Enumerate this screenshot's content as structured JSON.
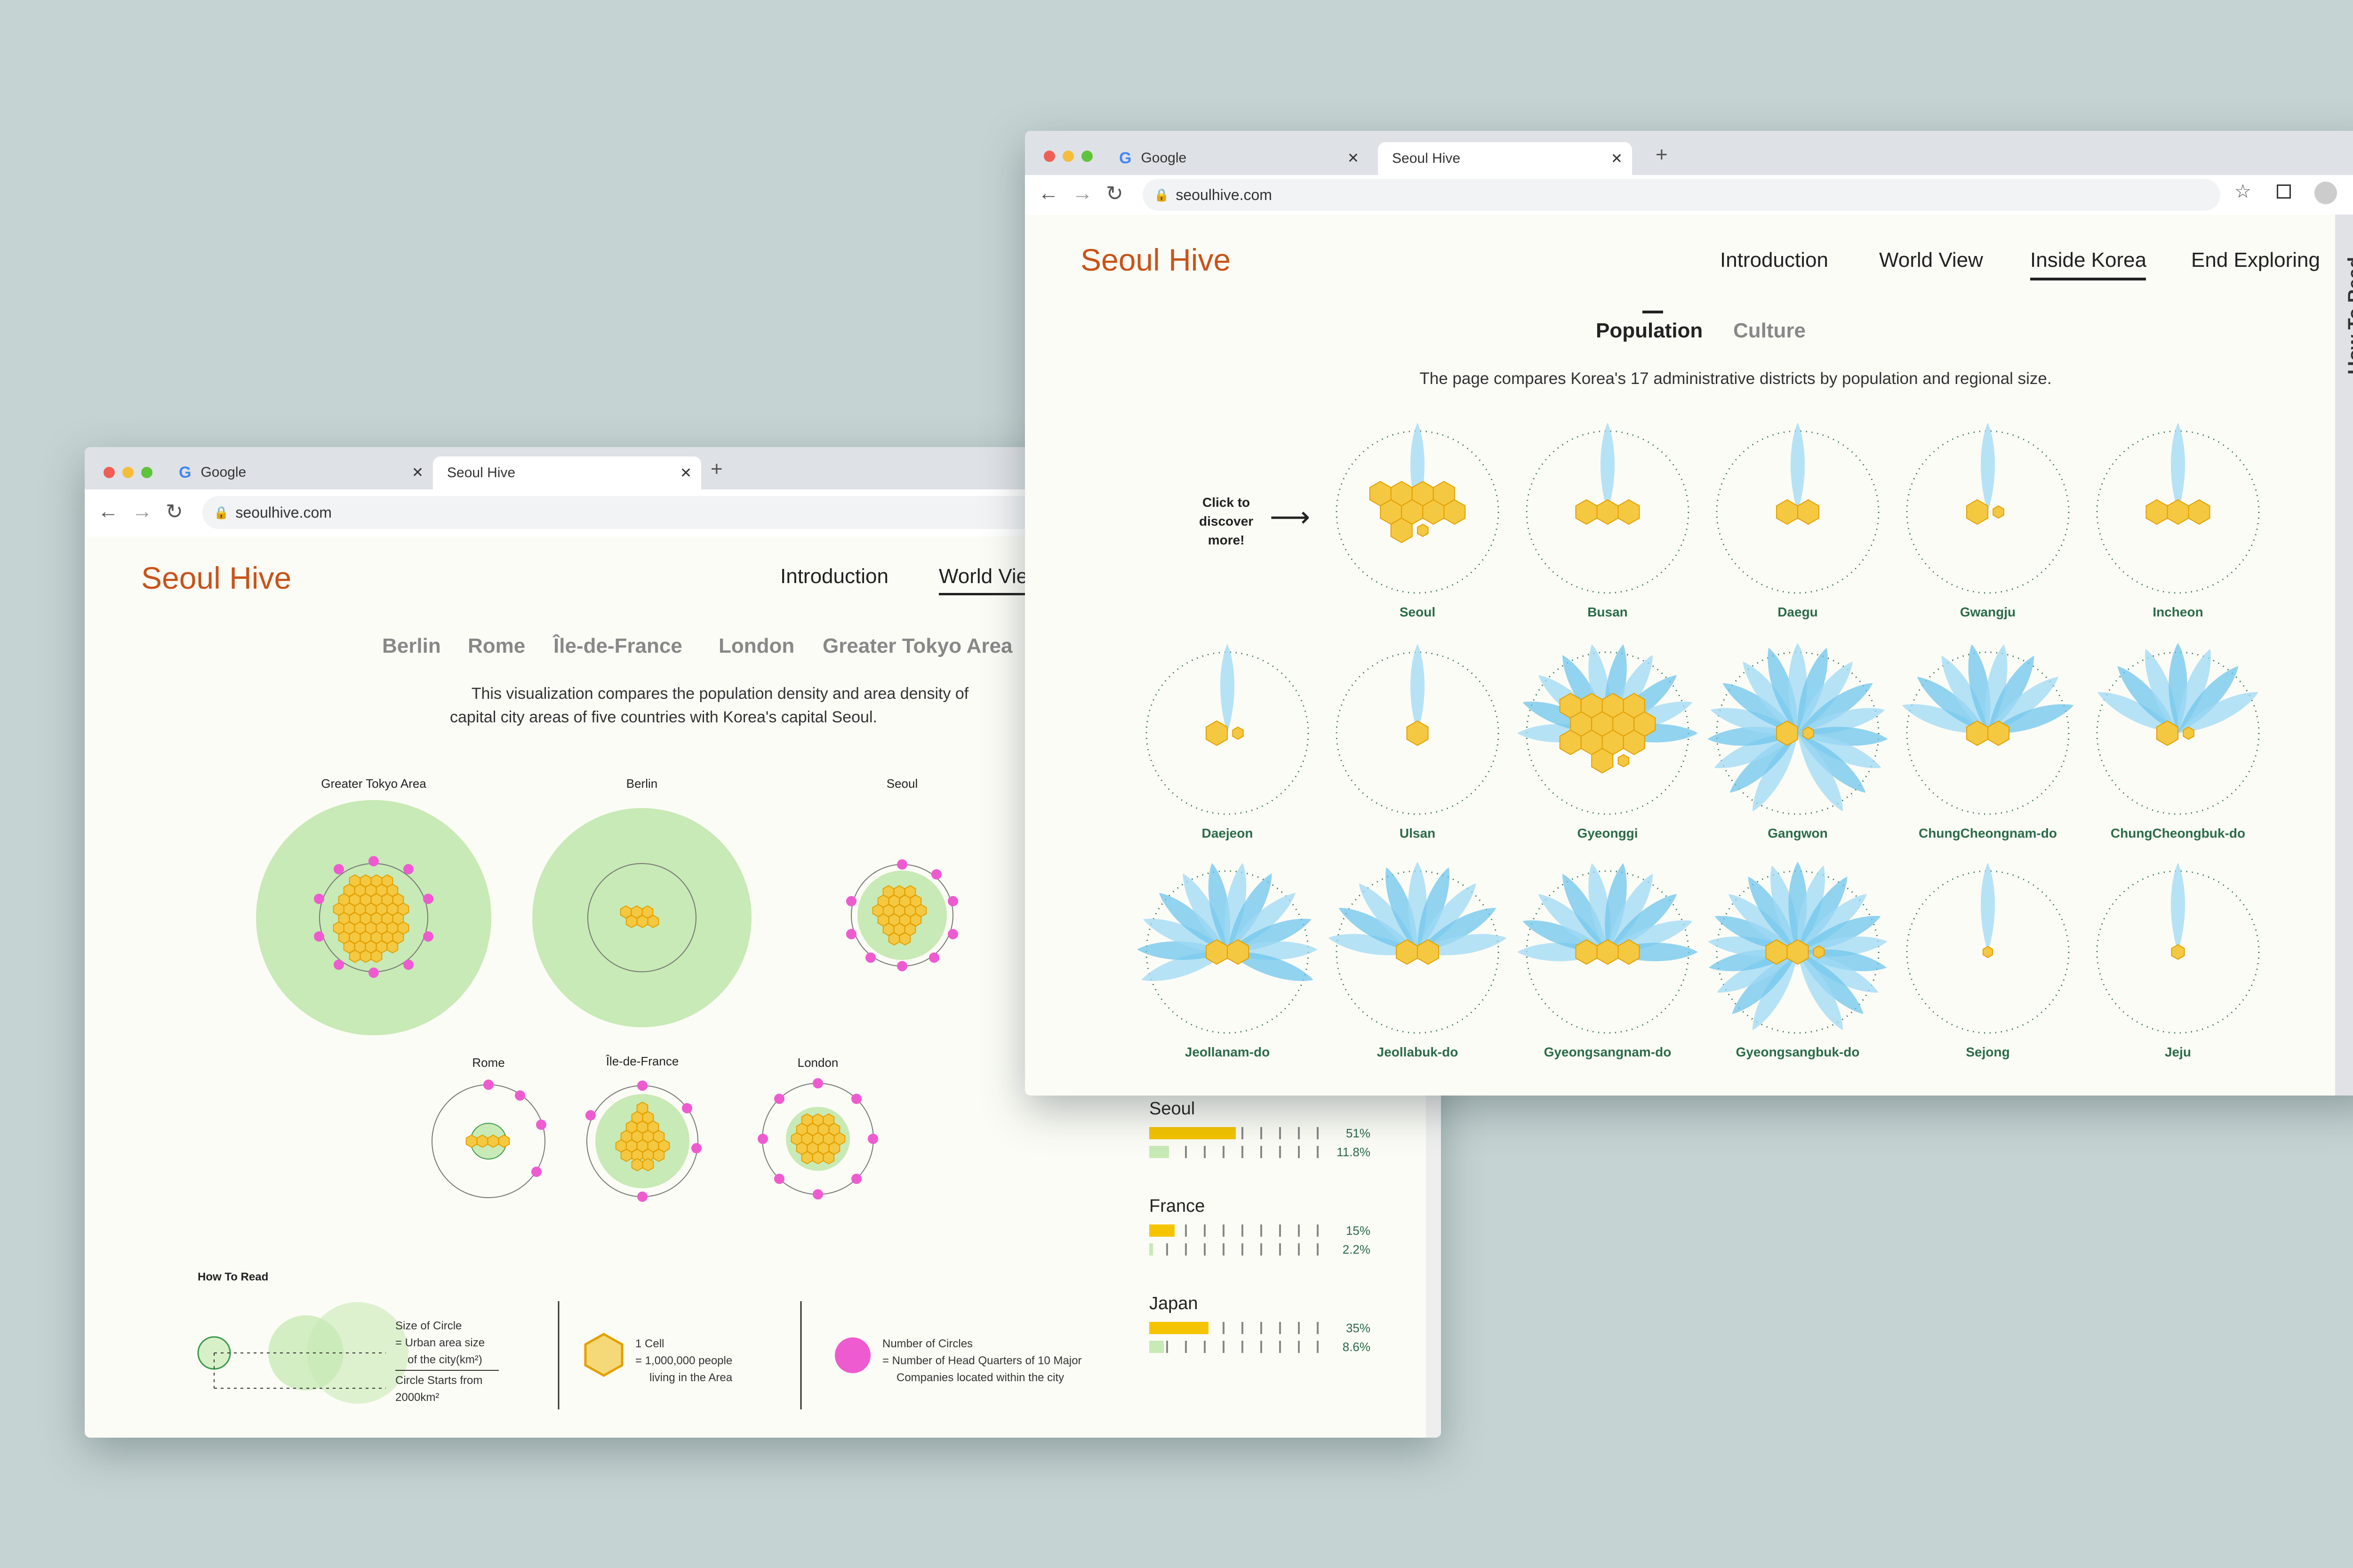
{
  "back_window": {
    "tabs": [
      {
        "title": "Google"
      },
      {
        "title": "Seoul Hive"
      }
    ],
    "url": "seoulhive.com",
    "logo": "Seoul Hive",
    "nav": {
      "introduction": "Introduction",
      "world_view": "World Vie"
    },
    "city_tabs": [
      "Berlin",
      "Rome",
      "Île-de-France",
      "London",
      "Greater Tokyo Area"
    ],
    "description_line1": "This visualization compares the population density and area density of",
    "description_line2": "capital city areas of five countries with Korea's capital Seoul.",
    "cities": [
      "Greater Tokyo Area",
      "Berlin",
      "Seoul",
      "Rome",
      "Île-de-France",
      "London"
    ],
    "how_to_read": {
      "title": "How To Read",
      "circle_size": "Size of Circle",
      "circle_eq": "= Urban area size",
      "circle_of": "of the city(km²)",
      "circle_start": "Circle Starts from",
      "circle_start_val": "2000km²",
      "cell_title": "1 Cell",
      "cell_eq": "= 1,000,000 people",
      "cell_area": "living in the Area",
      "num_circles": "Number of Circles",
      "num_eq": "= Number of Head Quarters of 10 Major",
      "num_comp": "Companies located within the city"
    },
    "stats": [
      {
        "country": "Seoul",
        "pop_pct": "51%",
        "area_pct": "11.8%",
        "pop": 51,
        "area": 11.8
      },
      {
        "country": "France",
        "pop_pct": "15%",
        "area_pct": "2.2%",
        "pop": 15,
        "area": 2.2
      },
      {
        "country": "Japan",
        "pop_pct": "35%",
        "area_pct": "8.6%",
        "pop": 35,
        "area": 8.6
      }
    ]
  },
  "front_window": {
    "tabs": [
      {
        "title": "Google"
      },
      {
        "title": "Seoul Hive"
      }
    ],
    "url": "seoulhive.com",
    "logo": "Seoul Hive",
    "nav": [
      "Introduction",
      "World View",
      "Inside Korea",
      "End Exploring"
    ],
    "side_tab": "How To Read",
    "subtabs": [
      "Population",
      "Culture"
    ],
    "description": "The page compares Korea's 17 administrative districts by population and regional size.",
    "hint": [
      "Click to",
      "discover",
      "more!"
    ],
    "districts": [
      {
        "name": "Seoul",
        "cells": 9.5,
        "petals": 1
      },
      {
        "name": "Busan",
        "cells": 3,
        "petals": 1
      },
      {
        "name": "Daegu",
        "cells": 2,
        "petals": 1
      },
      {
        "name": "Gwangju",
        "cells": 1.5,
        "petals": 1
      },
      {
        "name": "Incheon",
        "cells": 3,
        "petals": 1
      },
      {
        "name": "Daejeon",
        "cells": 1.5,
        "petals": 1
      },
      {
        "name": "Ulsan",
        "cells": 1,
        "petals": 1
      },
      {
        "name": "Gyeonggi",
        "cells": 13.5,
        "petals": 10
      },
      {
        "name": "Gangwon",
        "cells": 1.5,
        "petals": 17
      },
      {
        "name": "ChungCheongnam-do",
        "cells": 2,
        "petals": 8
      },
      {
        "name": "ChungCheongbuk-do",
        "cells": 1.5,
        "petals": 7
      },
      {
        "name": "Jeollanam-do",
        "cells": 2,
        "petals": 12
      },
      {
        "name": "Jeollabuk-do",
        "cells": 2,
        "petals": 9
      },
      {
        "name": "Gyeongsangnam-do",
        "cells": 3,
        "petals": 10
      },
      {
        "name": "Gyeongsangbuk-do",
        "cells": 2.5,
        "petals": 19
      },
      {
        "name": "Sejong",
        "cells": 0.3,
        "petals": 1
      },
      {
        "name": "Jeju",
        "cells": 0.6,
        "petals": 1
      }
    ]
  }
}
